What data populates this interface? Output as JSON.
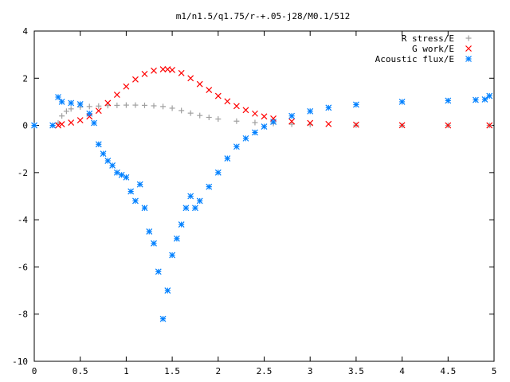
{
  "chart_data": {
    "type": "scatter",
    "title": "m1/n1.5/q1.75/r-+.05-j28/M0.1/512",
    "xlabel": "",
    "ylabel": "",
    "xlim": [
      0,
      5
    ],
    "ylim": [
      -10,
      4
    ],
    "grid": false,
    "legend_position": "top-right",
    "x_ticks": [
      "0",
      "0.5",
      "1",
      "1.5",
      "2",
      "2.5",
      "3",
      "3.5",
      "4",
      "4.5",
      "5"
    ],
    "y_ticks": [
      "4",
      "2",
      "0",
      "-2",
      "-4",
      "-6",
      "-8",
      "-10"
    ],
    "series": [
      {
        "name": "R stress/E",
        "marker": "plus",
        "color": "#a0a0a0",
        "x": [
          0.0,
          0.2,
          0.26,
          0.3,
          0.35,
          0.4,
          0.5,
          0.6,
          0.7,
          0.8,
          0.9,
          1.0,
          1.1,
          1.2,
          1.3,
          1.4,
          1.5,
          1.6,
          1.7,
          1.8,
          1.9,
          2.0,
          2.2,
          2.4,
          2.6,
          2.8,
          3.0,
          3.5,
          4.0,
          4.5,
          4.95
        ],
        "y": [
          0.0,
          0.0,
          0.1,
          0.4,
          0.6,
          0.7,
          0.78,
          0.8,
          0.82,
          0.84,
          0.85,
          0.86,
          0.86,
          0.85,
          0.83,
          0.8,
          0.73,
          0.63,
          0.52,
          0.42,
          0.34,
          0.27,
          0.18,
          0.12,
          0.08,
          0.05,
          0.03,
          0.01,
          0.0,
          0.0,
          0.0
        ]
      },
      {
        "name": "G work/E",
        "marker": "cross",
        "color": "#ff0000",
        "x": [
          0.26,
          0.3,
          0.4,
          0.5,
          0.6,
          0.7,
          0.8,
          0.9,
          1.0,
          1.1,
          1.2,
          1.3,
          1.4,
          1.45,
          1.5,
          1.6,
          1.7,
          1.8,
          1.9,
          2.0,
          2.1,
          2.2,
          2.3,
          2.4,
          2.5,
          2.6,
          2.8,
          3.0,
          3.2,
          3.5,
          4.0,
          4.5,
          4.95
        ],
        "y": [
          0.0,
          0.05,
          0.12,
          0.22,
          0.38,
          0.62,
          0.95,
          1.3,
          1.65,
          1.95,
          2.18,
          2.32,
          2.38,
          2.38,
          2.35,
          2.22,
          2.0,
          1.75,
          1.5,
          1.25,
          1.02,
          0.82,
          0.65,
          0.5,
          0.38,
          0.29,
          0.17,
          0.1,
          0.06,
          0.03,
          0.01,
          0.0,
          0.0
        ]
      },
      {
        "name": "Acoustic flux/E",
        "marker": "star",
        "color": "#0080ff",
        "x": [
          0.0,
          0.2,
          0.26,
          0.3,
          0.4,
          0.5,
          0.6,
          0.65,
          0.7,
          0.75,
          0.8,
          0.85,
          0.9,
          0.95,
          1.0,
          1.05,
          1.1,
          1.15,
          1.2,
          1.25,
          1.3,
          1.35,
          1.4,
          1.45,
          1.5,
          1.55,
          1.6,
          1.65,
          1.7,
          1.75,
          1.8,
          1.9,
          2.0,
          2.1,
          2.2,
          2.3,
          2.4,
          2.5,
          2.6,
          2.8,
          3.0,
          3.2,
          3.5,
          4.0,
          4.5,
          4.8,
          4.9,
          4.95
        ],
        "y": [
          0.0,
          0.0,
          1.2,
          1.0,
          0.95,
          0.9,
          0.5,
          0.1,
          -0.8,
          -1.2,
          -1.5,
          -1.7,
          -2.0,
          -2.1,
          -2.2,
          -2.8,
          -3.2,
          -2.5,
          -3.5,
          -4.5,
          -5.0,
          -6.2,
          -8.2,
          -7.0,
          -5.5,
          -4.8,
          -4.2,
          -3.5,
          -3.0,
          -3.5,
          -3.2,
          -2.6,
          -2.0,
          -1.4,
          -0.9,
          -0.55,
          -0.3,
          -0.05,
          0.15,
          0.4,
          0.6,
          0.75,
          0.88,
          1.0,
          1.05,
          1.08,
          1.1,
          1.25
        ]
      }
    ]
  }
}
